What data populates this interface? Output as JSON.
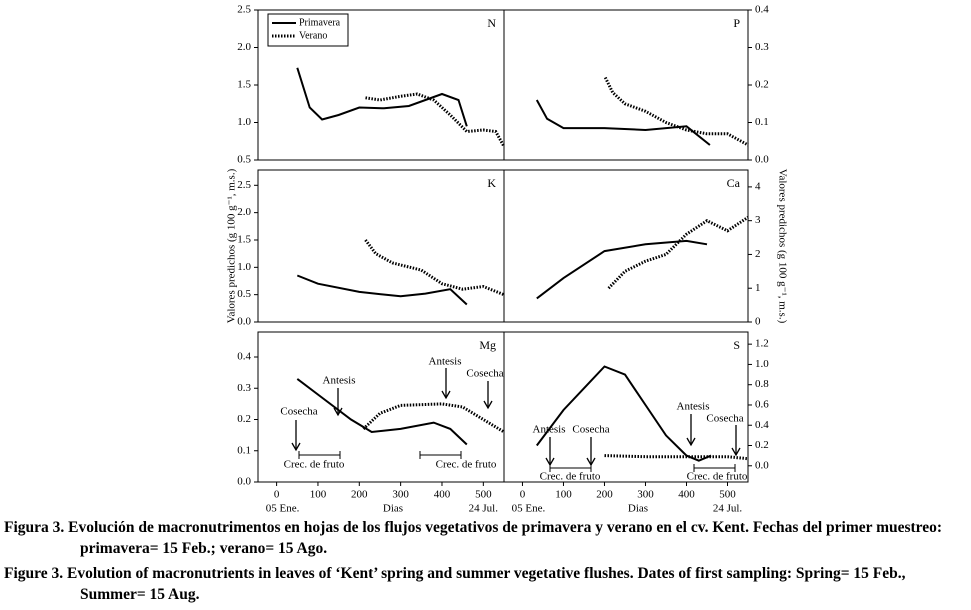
{
  "chart_data": [
    {
      "type": "line",
      "label": "N",
      "xlim": [
        -45,
        550
      ],
      "ylim": [
        0.5,
        2.5
      ],
      "yticks": [
        0.5,
        {
          "value": 1.0,
          "label": "1.0"
        },
        1.5,
        {
          "value": 2.0,
          "label": "2.0"
        },
        2.5
      ],
      "yaxis_side": "left",
      "legend": "upper left",
      "series": [
        {
          "name": "Primavera",
          "color": "#000000",
          "dash": "solid",
          "x": [
            50,
            80,
            110,
            150,
            200,
            260,
            320,
            400,
            440,
            460
          ],
          "values": [
            1.73,
            1.2,
            1.04,
            1.1,
            1.2,
            1.19,
            1.22,
            1.38,
            1.3,
            0.95
          ]
        },
        {
          "name": "Verano",
          "color": "#000000",
          "dash": "dotted",
          "x": [
            215,
            250,
            300,
            340,
            380,
            420,
            460,
            500,
            530,
            550
          ],
          "values": [
            1.33,
            1.3,
            1.35,
            1.38,
            1.3,
            1.1,
            0.88,
            0.9,
            0.88,
            0.68
          ]
        }
      ]
    },
    {
      "type": "line",
      "label": "P",
      "xlim": [
        -45,
        550
      ],
      "ylim": [
        0,
        0.4
      ],
      "yticks": [
        {
          "value": 0.0,
          "label": "0.0"
        },
        0.1,
        0.2,
        0.3,
        0.4
      ],
      "yaxis_side": "right",
      "series": [
        {
          "color": "#000000",
          "dash": "solid",
          "x": [
            35,
            60,
            100,
            200,
            300,
            400,
            457
          ],
          "values": [
            0.16,
            0.11,
            0.085,
            0.085,
            0.08,
            0.09,
            0.04
          ]
        },
        {
          "color": "#000000",
          "dash": "dotted",
          "x": [
            202,
            220,
            250,
            300,
            350,
            400,
            450,
            500,
            550
          ],
          "values": [
            0.22,
            0.18,
            0.15,
            0.13,
            0.1,
            0.08,
            0.07,
            0.07,
            0.04
          ]
        }
      ]
    },
    {
      "type": "line",
      "label": "K",
      "xlim": [
        -45,
        550
      ],
      "ylim": [
        0,
        2.78
      ],
      "yticks": [
        {
          "value": 0.0,
          "label": "0.0"
        },
        0.5,
        {
          "value": 1.0,
          "label": "1.0"
        },
        1.5,
        {
          "value": 2.0,
          "label": "2.0"
        },
        2.5
      ],
      "yaxis_side": "left",
      "ylabel": "Valores predichos (g 100 g⁻¹, m.s.)",
      "series": [
        {
          "color": "#000000",
          "dash": "solid",
          "x": [
            50,
            100,
            200,
            300,
            360,
            420,
            460
          ],
          "values": [
            0.85,
            0.7,
            0.55,
            0.47,
            0.52,
            0.6,
            0.32
          ]
        },
        {
          "color": "#000000",
          "dash": "dotted",
          "x": [
            215,
            240,
            280,
            350,
            400,
            450,
            500,
            550
          ],
          "values": [
            1.5,
            1.25,
            1.08,
            0.95,
            0.7,
            0.6,
            0.65,
            0.5
          ]
        }
      ]
    },
    {
      "type": "line",
      "label": "Ca",
      "xlim": [
        -45,
        550
      ],
      "ylim": [
        0,
        4.5
      ],
      "yticks": [
        0,
        1,
        2,
        3,
        4
      ],
      "yaxis_side": "right",
      "ylabel": "Valores predichos (g 100 g⁻¹, m.s.)",
      "series": [
        {
          "color": "#000000",
          "dash": "solid",
          "x": [
            35,
            100,
            200,
            300,
            400,
            450
          ],
          "values": [
            0.7,
            1.3,
            2.1,
            2.3,
            2.4,
            2.3
          ]
        },
        {
          "color": "#000000",
          "dash": "dotted",
          "x": [
            210,
            250,
            300,
            350,
            400,
            450,
            500,
            550
          ],
          "values": [
            1.0,
            1.5,
            1.8,
            2.0,
            2.6,
            3.0,
            2.7,
            3.1
          ]
        }
      ]
    },
    {
      "type": "line",
      "label": "Mg",
      "xlim": [
        -45,
        550
      ],
      "ylim": [
        0,
        0.48
      ],
      "yticks": [
        {
          "value": 0.0,
          "label": "0.0"
        },
        0.1,
        0.2,
        0.3,
        0.4
      ],
      "yaxis_side": "left",
      "xticks": [
        0,
        100,
        200,
        300,
        400,
        500
      ],
      "xlabel": "Dias",
      "date_labels": [
        "05 Ene.",
        "24 Jul."
      ],
      "annotations": [
        "Cosecha",
        "Antesis",
        "Antesis",
        "Cosecha",
        "Crec. de fruto",
        "Crec. de fruto"
      ],
      "series": [
        {
          "color": "#000000",
          "dash": "solid",
          "x": [
            50,
            100,
            180,
            230,
            300,
            380,
            420,
            460
          ],
          "values": [
            0.33,
            0.28,
            0.2,
            0.16,
            0.17,
            0.19,
            0.17,
            0.12
          ]
        },
        {
          "color": "#000000",
          "dash": "dotted",
          "x": [
            210,
            250,
            300,
            400,
            450,
            500,
            550
          ],
          "values": [
            0.17,
            0.22,
            0.245,
            0.25,
            0.24,
            0.2,
            0.16
          ]
        }
      ]
    },
    {
      "type": "line",
      "label": "S",
      "xlim": [
        -45,
        550
      ],
      "ylim": [
        -0.16,
        1.32
      ],
      "yticks": [
        {
          "value": 0.0,
          "label": "0.0"
        },
        0.2,
        0.4,
        0.6,
        0.8,
        {
          "value": 1.0,
          "label": "1.0"
        },
        1.2
      ],
      "yaxis_side": "right",
      "xticks": [
        0,
        100,
        200,
        300,
        400,
        500
      ],
      "xlabel": "Dias",
      "date_labels": [
        "05 Ene.",
        "24 Jul."
      ],
      "annotations": [
        "Antesis",
        "Cosecha",
        "Crec. de fruto",
        "Antesis",
        "Cosecha",
        "Crec. de fruto"
      ],
      "series": [
        {
          "color": "#000000",
          "dash": "solid",
          "x": [
            35,
            100,
            200,
            250,
            300,
            350,
            400,
            430,
            460
          ],
          "values": [
            0.2,
            0.55,
            0.98,
            0.9,
            0.6,
            0.3,
            0.1,
            0.05,
            0.1
          ]
        },
        {
          "color": "#000000",
          "dash": "dotted",
          "x": [
            200,
            300,
            400,
            500,
            550
          ],
          "values": [
            0.1,
            0.09,
            0.09,
            0.09,
            0.07
          ]
        }
      ]
    }
  ],
  "captions": [
    "Figura 3. Evolución de macronutrimentos en hojas de los flujos vegetativos de primavera y verano en el cv. Kent. Fechas del primer muestreo: primavera= 15 Feb.; verano= 15 Ago.",
    "Figure 3. Evolution of macronutrients in leaves of ‘Kent’ spring and summer vegetative flushes. Dates of first sampling: Spring= 15 Feb., Summer= 15 Aug."
  ]
}
